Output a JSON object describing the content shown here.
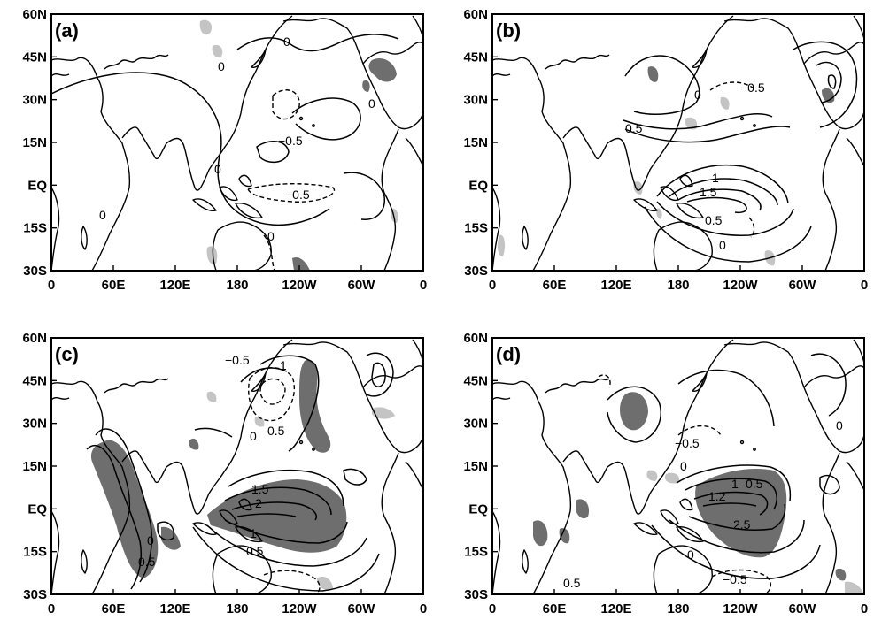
{
  "figure": {
    "panels": [
      {
        "id": "a",
        "tag": "(a)",
        "contour_labels": [
          "0",
          "0",
          "0",
          "0",
          "0",
          "0",
          "−0.5",
          "−0.5"
        ]
      },
      {
        "id": "b",
        "tag": "(b)",
        "contour_labels": [
          "−0.5",
          "0",
          "0.5",
          "1",
          "1.5",
          "0.5",
          "0"
        ]
      },
      {
        "id": "c",
        "tag": "(c)",
        "contour_labels": [
          "−0.5",
          "1",
          "0",
          "0.5",
          "1.5",
          "2",
          "1",
          "0.5",
          "0",
          "0.5"
        ]
      },
      {
        "id": "d",
        "tag": "(d)",
        "contour_labels": [
          "−0.5",
          "0",
          "1.2",
          "1",
          "0.5",
          "2.5",
          "0",
          "0",
          "−0.5",
          "0.5"
        ]
      }
    ],
    "lon_ticks": [
      "0",
      "60E",
      "120E",
      "180",
      "120W",
      "60W",
      "0"
    ],
    "lat_ticks": [
      "60N",
      "45N",
      "30N",
      "15N",
      "EQ",
      "15S",
      "30S"
    ],
    "shading": {
      "dark_color": "#6e6e6e",
      "light_color": "#c4c4c4"
    }
  }
}
